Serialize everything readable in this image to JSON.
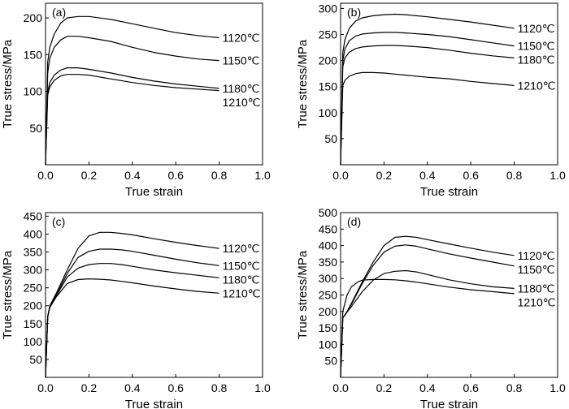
{
  "chart_data": [
    {
      "type": "line",
      "panel_label": "(a)",
      "xlabel": "True strain",
      "ylabel": "True stress/MPa",
      "xlim": [
        0,
        1.0
      ],
      "ylim": [
        0,
        220
      ],
      "x_ticks": [
        0,
        0.2,
        0.4,
        0.6,
        0.8,
        1.0
      ],
      "x_tick_labels": [
        "0.0",
        "0.2",
        "0.4",
        "0.6",
        "0.8",
        "1.0"
      ],
      "y_ticks": [
        50,
        100,
        150,
        200
      ],
      "y_tick_labels": [
        "50",
        "100",
        "150",
        "200"
      ],
      "series": [
        {
          "name": "1120℃",
          "x": [
            0,
            0.01,
            0.02,
            0.04,
            0.07,
            0.1,
            0.15,
            0.2,
            0.3,
            0.4,
            0.5,
            0.6,
            0.7,
            0.8
          ],
          "y": [
            0,
            140,
            160,
            178,
            193,
            200,
            202,
            202,
            198,
            192,
            186,
            180,
            176,
            173
          ]
        },
        {
          "name": "1150℃",
          "x": [
            0,
            0.01,
            0.02,
            0.04,
            0.07,
            0.1,
            0.15,
            0.2,
            0.3,
            0.4,
            0.5,
            0.6,
            0.7,
            0.8
          ],
          "y": [
            0,
            125,
            145,
            160,
            170,
            175,
            175,
            173,
            168,
            160,
            153,
            148,
            144,
            142
          ]
        },
        {
          "name": "1180℃",
          "x": [
            0,
            0.01,
            0.02,
            0.04,
            0.07,
            0.1,
            0.15,
            0.2,
            0.3,
            0.4,
            0.5,
            0.6,
            0.7,
            0.8
          ],
          "y": [
            0,
            100,
            112,
            122,
            129,
            132,
            132,
            130,
            125,
            119,
            114,
            110,
            107,
            104
          ]
        },
        {
          "name": "1210℃",
          "x": [
            0,
            0.01,
            0.02,
            0.04,
            0.07,
            0.1,
            0.15,
            0.2,
            0.3,
            0.4,
            0.5,
            0.6,
            0.7,
            0.8
          ],
          "y": [
            0,
            95,
            106,
            115,
            121,
            123,
            123,
            122,
            117,
            112,
            108,
            105,
            103,
            101
          ]
        }
      ]
    },
    {
      "type": "line",
      "panel_label": "(b)",
      "xlabel": "True strain",
      "ylabel": "True stress/MPa",
      "xlim": [
        0,
        1.0
      ],
      "ylim": [
        0,
        310
      ],
      "x_ticks": [
        0,
        0.2,
        0.4,
        0.6,
        0.8,
        1.0
      ],
      "x_tick_labels": [
        "0.0",
        "0.2",
        "0.4",
        "0.6",
        "0.8",
        "1.0"
      ],
      "y_ticks": [
        50,
        100,
        150,
        200,
        250,
        300
      ],
      "y_tick_labels": [
        "50",
        "100",
        "150",
        "200",
        "250",
        "300"
      ],
      "series": [
        {
          "name": "1120℃",
          "x": [
            0,
            0.01,
            0.02,
            0.04,
            0.07,
            0.1,
            0.15,
            0.2,
            0.25,
            0.3,
            0.4,
            0.5,
            0.6,
            0.7,
            0.8
          ],
          "y": [
            0,
            215,
            240,
            262,
            276,
            282,
            286,
            288,
            289,
            288,
            284,
            279,
            274,
            268,
            262
          ]
        },
        {
          "name": "1150℃",
          "x": [
            0,
            0.01,
            0.02,
            0.04,
            0.07,
            0.1,
            0.15,
            0.2,
            0.25,
            0.3,
            0.4,
            0.5,
            0.6,
            0.7,
            0.8
          ],
          "y": [
            0,
            200,
            222,
            238,
            247,
            251,
            253,
            254,
            254,
            253,
            250,
            246,
            240,
            234,
            228
          ]
        },
        {
          "name": "1180℃",
          "x": [
            0,
            0.01,
            0.02,
            0.04,
            0.07,
            0.1,
            0.15,
            0.2,
            0.25,
            0.3,
            0.4,
            0.5,
            0.6,
            0.7,
            0.8
          ],
          "y": [
            0,
            188,
            205,
            216,
            223,
            226,
            228,
            229,
            229,
            228,
            225,
            220,
            214,
            209,
            205
          ]
        },
        {
          "name": "1210℃",
          "x": [
            0,
            0.01,
            0.02,
            0.04,
            0.07,
            0.1,
            0.15,
            0.2,
            0.25,
            0.3,
            0.4,
            0.5,
            0.6,
            0.7,
            0.8
          ],
          "y": [
            0,
            152,
            162,
            170,
            175,
            177,
            177,
            176,
            174,
            172,
            168,
            165,
            160,
            156,
            152
          ]
        }
      ]
    },
    {
      "type": "line",
      "panel_label": "(c)",
      "xlabel": "True strain",
      "ylabel": "True stress/MPa",
      "xlim": [
        0,
        1.0
      ],
      "ylim": [
        0,
        460
      ],
      "x_ticks": [
        0,
        0.2,
        0.4,
        0.6,
        0.8,
        1.0
      ],
      "x_tick_labels": [
        "0.0",
        "0.2",
        "0.4",
        "0.6",
        "0.8",
        "1.0"
      ],
      "y_ticks": [
        50,
        100,
        150,
        200,
        250,
        300,
        350,
        400,
        450
      ],
      "y_tick_labels": [
        "50",
        "100",
        "150",
        "200",
        "250",
        "300",
        "350",
        "400",
        "450"
      ],
      "series": [
        {
          "name": "1120℃",
          "x": [
            0,
            0.01,
            0.02,
            0.05,
            0.1,
            0.15,
            0.2,
            0.25,
            0.3,
            0.35,
            0.4,
            0.5,
            0.6,
            0.7,
            0.8
          ],
          "y": [
            0,
            170,
            200,
            235,
            300,
            360,
            395,
            405,
            405,
            402,
            398,
            387,
            377,
            368,
            360
          ]
        },
        {
          "name": "1150℃",
          "x": [
            0,
            0.01,
            0.02,
            0.05,
            0.1,
            0.15,
            0.2,
            0.25,
            0.3,
            0.35,
            0.4,
            0.5,
            0.6,
            0.7,
            0.8
          ],
          "y": [
            0,
            170,
            198,
            230,
            290,
            335,
            352,
            358,
            358,
            356,
            352,
            341,
            330,
            320,
            312
          ]
        },
        {
          "name": "1180℃",
          "x": [
            0,
            0.01,
            0.02,
            0.05,
            0.1,
            0.15,
            0.2,
            0.25,
            0.3,
            0.35,
            0.4,
            0.5,
            0.6,
            0.7,
            0.8
          ],
          "y": [
            0,
            170,
            196,
            228,
            280,
            305,
            315,
            318,
            318,
            315,
            310,
            300,
            292,
            285,
            278
          ]
        },
        {
          "name": "1210℃",
          "x": [
            0,
            0.01,
            0.02,
            0.05,
            0.1,
            0.15,
            0.2,
            0.25,
            0.3,
            0.35,
            0.4,
            0.5,
            0.6,
            0.7,
            0.8
          ],
          "y": [
            0,
            170,
            195,
            225,
            262,
            273,
            275,
            274,
            272,
            268,
            264,
            255,
            247,
            240,
            235
          ]
        }
      ]
    },
    {
      "type": "line",
      "panel_label": "(d)",
      "xlabel": "True strain",
      "ylabel": "True stress/MPa",
      "xlim": [
        0,
        1.0
      ],
      "ylim": [
        0,
        500
      ],
      "x_ticks": [
        0,
        0.2,
        0.4,
        0.6,
        0.8,
        1.0
      ],
      "x_tick_labels": [
        "0.0",
        "0.2",
        "0.4",
        "0.6",
        "0.8",
        "1.0"
      ],
      "y_ticks": [
        50,
        100,
        150,
        200,
        250,
        300,
        350,
        400,
        450,
        500
      ],
      "y_tick_labels": [
        "50",
        "100",
        "150",
        "200",
        "250",
        "300",
        "350",
        "400",
        "450",
        "500"
      ],
      "series": [
        {
          "name": "1120℃",
          "x": [
            0,
            0.01,
            0.03,
            0.05,
            0.1,
            0.15,
            0.2,
            0.25,
            0.3,
            0.35,
            0.4,
            0.5,
            0.6,
            0.7,
            0.8
          ],
          "y": [
            0,
            180,
            200,
            225,
            290,
            350,
            400,
            425,
            428,
            425,
            418,
            405,
            392,
            380,
            370
          ]
        },
        {
          "name": "1150℃",
          "x": [
            0,
            0.01,
            0.03,
            0.05,
            0.1,
            0.15,
            0.2,
            0.25,
            0.3,
            0.35,
            0.4,
            0.5,
            0.6,
            0.7,
            0.8
          ],
          "y": [
            0,
            180,
            200,
            222,
            285,
            340,
            380,
            398,
            402,
            398,
            390,
            375,
            362,
            350,
            338
          ]
        },
        {
          "name": "1180℃",
          "x": [
            0,
            0.01,
            0.03,
            0.05,
            0.1,
            0.15,
            0.2,
            0.25,
            0.3,
            0.35,
            0.4,
            0.5,
            0.6,
            0.7,
            0.8
          ],
          "y": [
            0,
            180,
            198,
            215,
            260,
            295,
            315,
            322,
            324,
            320,
            312,
            296,
            284,
            275,
            270
          ]
        },
        {
          "name": "1210℃",
          "x": [
            0,
            0.01,
            0.03,
            0.05,
            0.08,
            0.1,
            0.15,
            0.2,
            0.25,
            0.3,
            0.35,
            0.4,
            0.5,
            0.6,
            0.7,
            0.8
          ],
          "y": [
            0,
            200,
            250,
            275,
            290,
            295,
            297,
            297,
            296,
            293,
            289,
            284,
            274,
            266,
            260,
            254
          ]
        }
      ]
    }
  ]
}
